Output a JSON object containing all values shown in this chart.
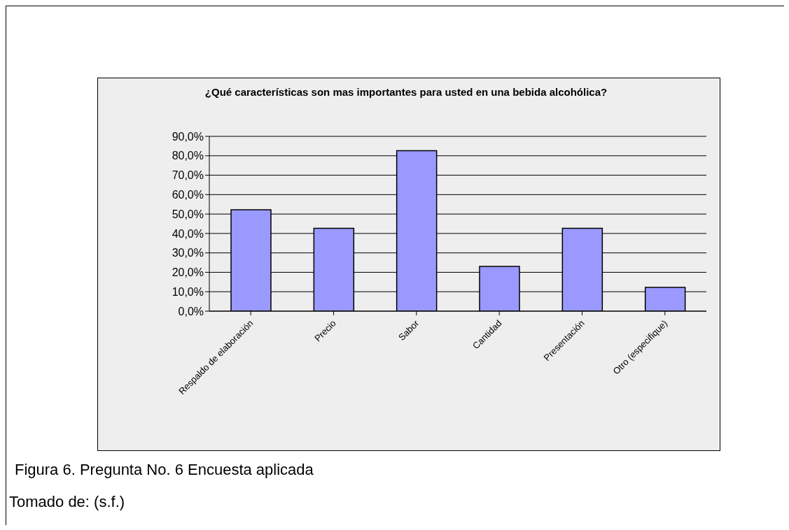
{
  "chart_data": {
    "type": "bar",
    "title": "¿Qué características son mas importantes para usted en una bebida alcohólica?",
    "categories": [
      "Respaldo de elaboración",
      "Precio",
      "Sabor",
      "Cantidad",
      "Presentación",
      "Otro (especifique)"
    ],
    "values": [
      52.2,
      42.7,
      82.6,
      23.0,
      42.7,
      12.2
    ],
    "color": "#9999ff",
    "ylim": [
      0,
      90
    ],
    "yticks": [
      {
        "value": 0,
        "label": "0,0%"
      },
      {
        "value": 10,
        "label": "10,0%"
      },
      {
        "value": 20,
        "label": "20,0%"
      },
      {
        "value": 30,
        "label": "30,0%"
      },
      {
        "value": 40,
        "label": "40,0%"
      },
      {
        "value": 50,
        "label": "50,0%"
      },
      {
        "value": 60,
        "label": "60,0%"
      },
      {
        "value": 70,
        "label": "70,0%"
      },
      {
        "value": 80,
        "label": "80,0%"
      },
      {
        "value": 90,
        "label": "90,0%"
      }
    ],
    "grid": "y",
    "legend": false,
    "annotations": [
      "Figura 6. Pregunta No. 6 Encuesta aplicada",
      "Tomado de: (s.f.)"
    ]
  }
}
